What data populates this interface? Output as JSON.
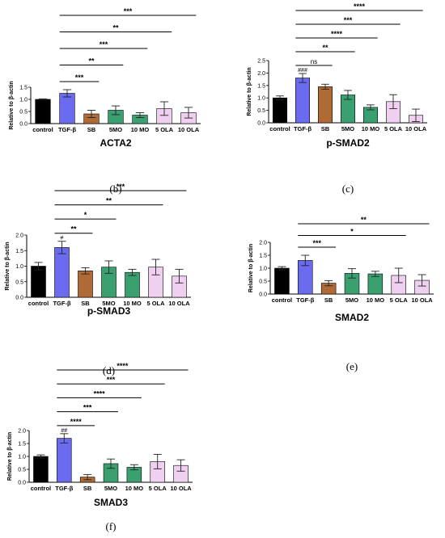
{
  "colors": {
    "control": "#000000",
    "TGF-β": "#6b6bf0",
    "SB": "#b06a36",
    "5MO": "#3aa070",
    "10 MO": "#3aa070",
    "5 OLA": "#f0d0f0",
    "10 OLA": "#f0d0f0"
  },
  "chart_data": [
    {
      "panel": "(b)",
      "type": "bar",
      "title": "ACTA2",
      "ylabel": "Relative to β-actin",
      "categories": [
        "control",
        "TGF-β",
        "SB",
        "5MO",
        "10 MO",
        "5 OLA",
        "10 OLA"
      ],
      "values": [
        1.0,
        1.25,
        0.4,
        0.55,
        0.35,
        0.62,
        0.45
      ],
      "errors": [
        0.02,
        0.15,
        0.15,
        0.18,
        0.1,
        0.28,
        0.22
      ],
      "ylim": [
        0,
        1.5
      ],
      "yticks": [
        "0.0",
        "0.5",
        "1.0",
        "1.5"
      ],
      "annotations": [],
      "comparisons": [
        {
          "to": "SB",
          "label": "***"
        },
        {
          "to": "5MO",
          "label": "**"
        },
        {
          "to": "10 MO",
          "label": "***"
        },
        {
          "to": "5 OLA",
          "label": "**"
        },
        {
          "to": "10 OLA",
          "label": "***"
        }
      ]
    },
    {
      "panel": "(c)",
      "type": "bar",
      "title": "p-SMAD2",
      "ylabel": "Relative to β-actin",
      "categories": [
        "control",
        "TGF-β",
        "SB",
        "5MO",
        "10 MO",
        "5 OLA",
        "10 OLA"
      ],
      "values": [
        1.0,
        1.8,
        1.45,
        1.12,
        0.62,
        0.85,
        0.3
      ],
      "errors": [
        0.08,
        0.18,
        0.1,
        0.18,
        0.1,
        0.28,
        0.25
      ],
      "ylim": [
        0,
        2.5
      ],
      "yticks": [
        "0.0",
        "0.5",
        "1.0",
        "1.5",
        "2.0",
        "2.5"
      ],
      "annotations": [
        {
          "category": "TGF-β",
          "label": "###"
        }
      ],
      "comparisons": [
        {
          "to": "SB",
          "label": "ns"
        },
        {
          "to": "5MO",
          "label": "**"
        },
        {
          "to": "10 MO",
          "label": "****"
        },
        {
          "to": "5 OLA",
          "label": "***"
        },
        {
          "to": "10 OLA",
          "label": "****"
        }
      ]
    },
    {
      "panel": "(d)",
      "type": "bar",
      "title": "p-SMAD3",
      "ylabel": "Relative to β-actin",
      "categories": [
        "control",
        "TGF-β",
        "SB",
        "5MO",
        "10 MO",
        "5 OLA",
        "10 OLA"
      ],
      "values": [
        1.0,
        1.6,
        0.85,
        0.97,
        0.8,
        0.97,
        0.68
      ],
      "errors": [
        0.12,
        0.2,
        0.1,
        0.2,
        0.1,
        0.25,
        0.22
      ],
      "ylim": [
        0,
        2.0
      ],
      "yticks": [
        "0.0",
        "0.5",
        "1.0",
        "1.5",
        "2.0"
      ],
      "annotations": [
        {
          "category": "TGF-β",
          "label": "#"
        }
      ],
      "comparisons": [
        {
          "to": "SB",
          "label": "**"
        },
        {
          "to": "5MO",
          "label": "*"
        },
        {
          "to": "5 OLA",
          "label": "**"
        },
        {
          "to": "10 OLA",
          "label": "***"
        }
      ]
    },
    {
      "panel": "(e)",
      "type": "bar",
      "title": "SMAD2",
      "ylabel": "Relative to β-actin",
      "categories": [
        "control",
        "TGF-β",
        "SB",
        "5MO",
        "10 MO",
        "5 OLA",
        "10 OLA"
      ],
      "values": [
        1.0,
        1.3,
        0.42,
        0.8,
        0.78,
        0.72,
        0.53
      ],
      "errors": [
        0.06,
        0.2,
        0.1,
        0.18,
        0.1,
        0.28,
        0.22
      ],
      "ylim": [
        0,
        2.0
      ],
      "yticks": [
        "0.0",
        "0.5",
        "1.0",
        "1.5",
        "2.0"
      ],
      "annotations": [],
      "comparisons": [
        {
          "to": "SB",
          "label": "***"
        },
        {
          "to": "5 OLA",
          "label": "*"
        },
        {
          "to": "10 OLA",
          "label": "**"
        }
      ]
    },
    {
      "panel": "(f)",
      "type": "bar",
      "title": "SMAD3",
      "ylabel": "Relative to β-actin",
      "categories": [
        "control",
        "TGF-β",
        "SB",
        "5MO",
        "10 MO",
        "5 OLA",
        "10 OLA"
      ],
      "values": [
        1.0,
        1.7,
        0.2,
        0.72,
        0.58,
        0.8,
        0.65
      ],
      "errors": [
        0.06,
        0.18,
        0.1,
        0.18,
        0.1,
        0.28,
        0.22
      ],
      "ylim": [
        0,
        2.0
      ],
      "yticks": [
        "0.0",
        "0.5",
        "1.0",
        "1.5",
        "2.0"
      ],
      "annotations": [
        {
          "category": "TGF-β",
          "label": "##"
        }
      ],
      "comparisons": [
        {
          "to": "SB",
          "label": "****"
        },
        {
          "to": "5MO",
          "label": "***"
        },
        {
          "to": "10 MO",
          "label": "****"
        },
        {
          "to": "5 OLA",
          "label": "***"
        },
        {
          "to": "10 OLA",
          "label": "****"
        }
      ]
    }
  ]
}
